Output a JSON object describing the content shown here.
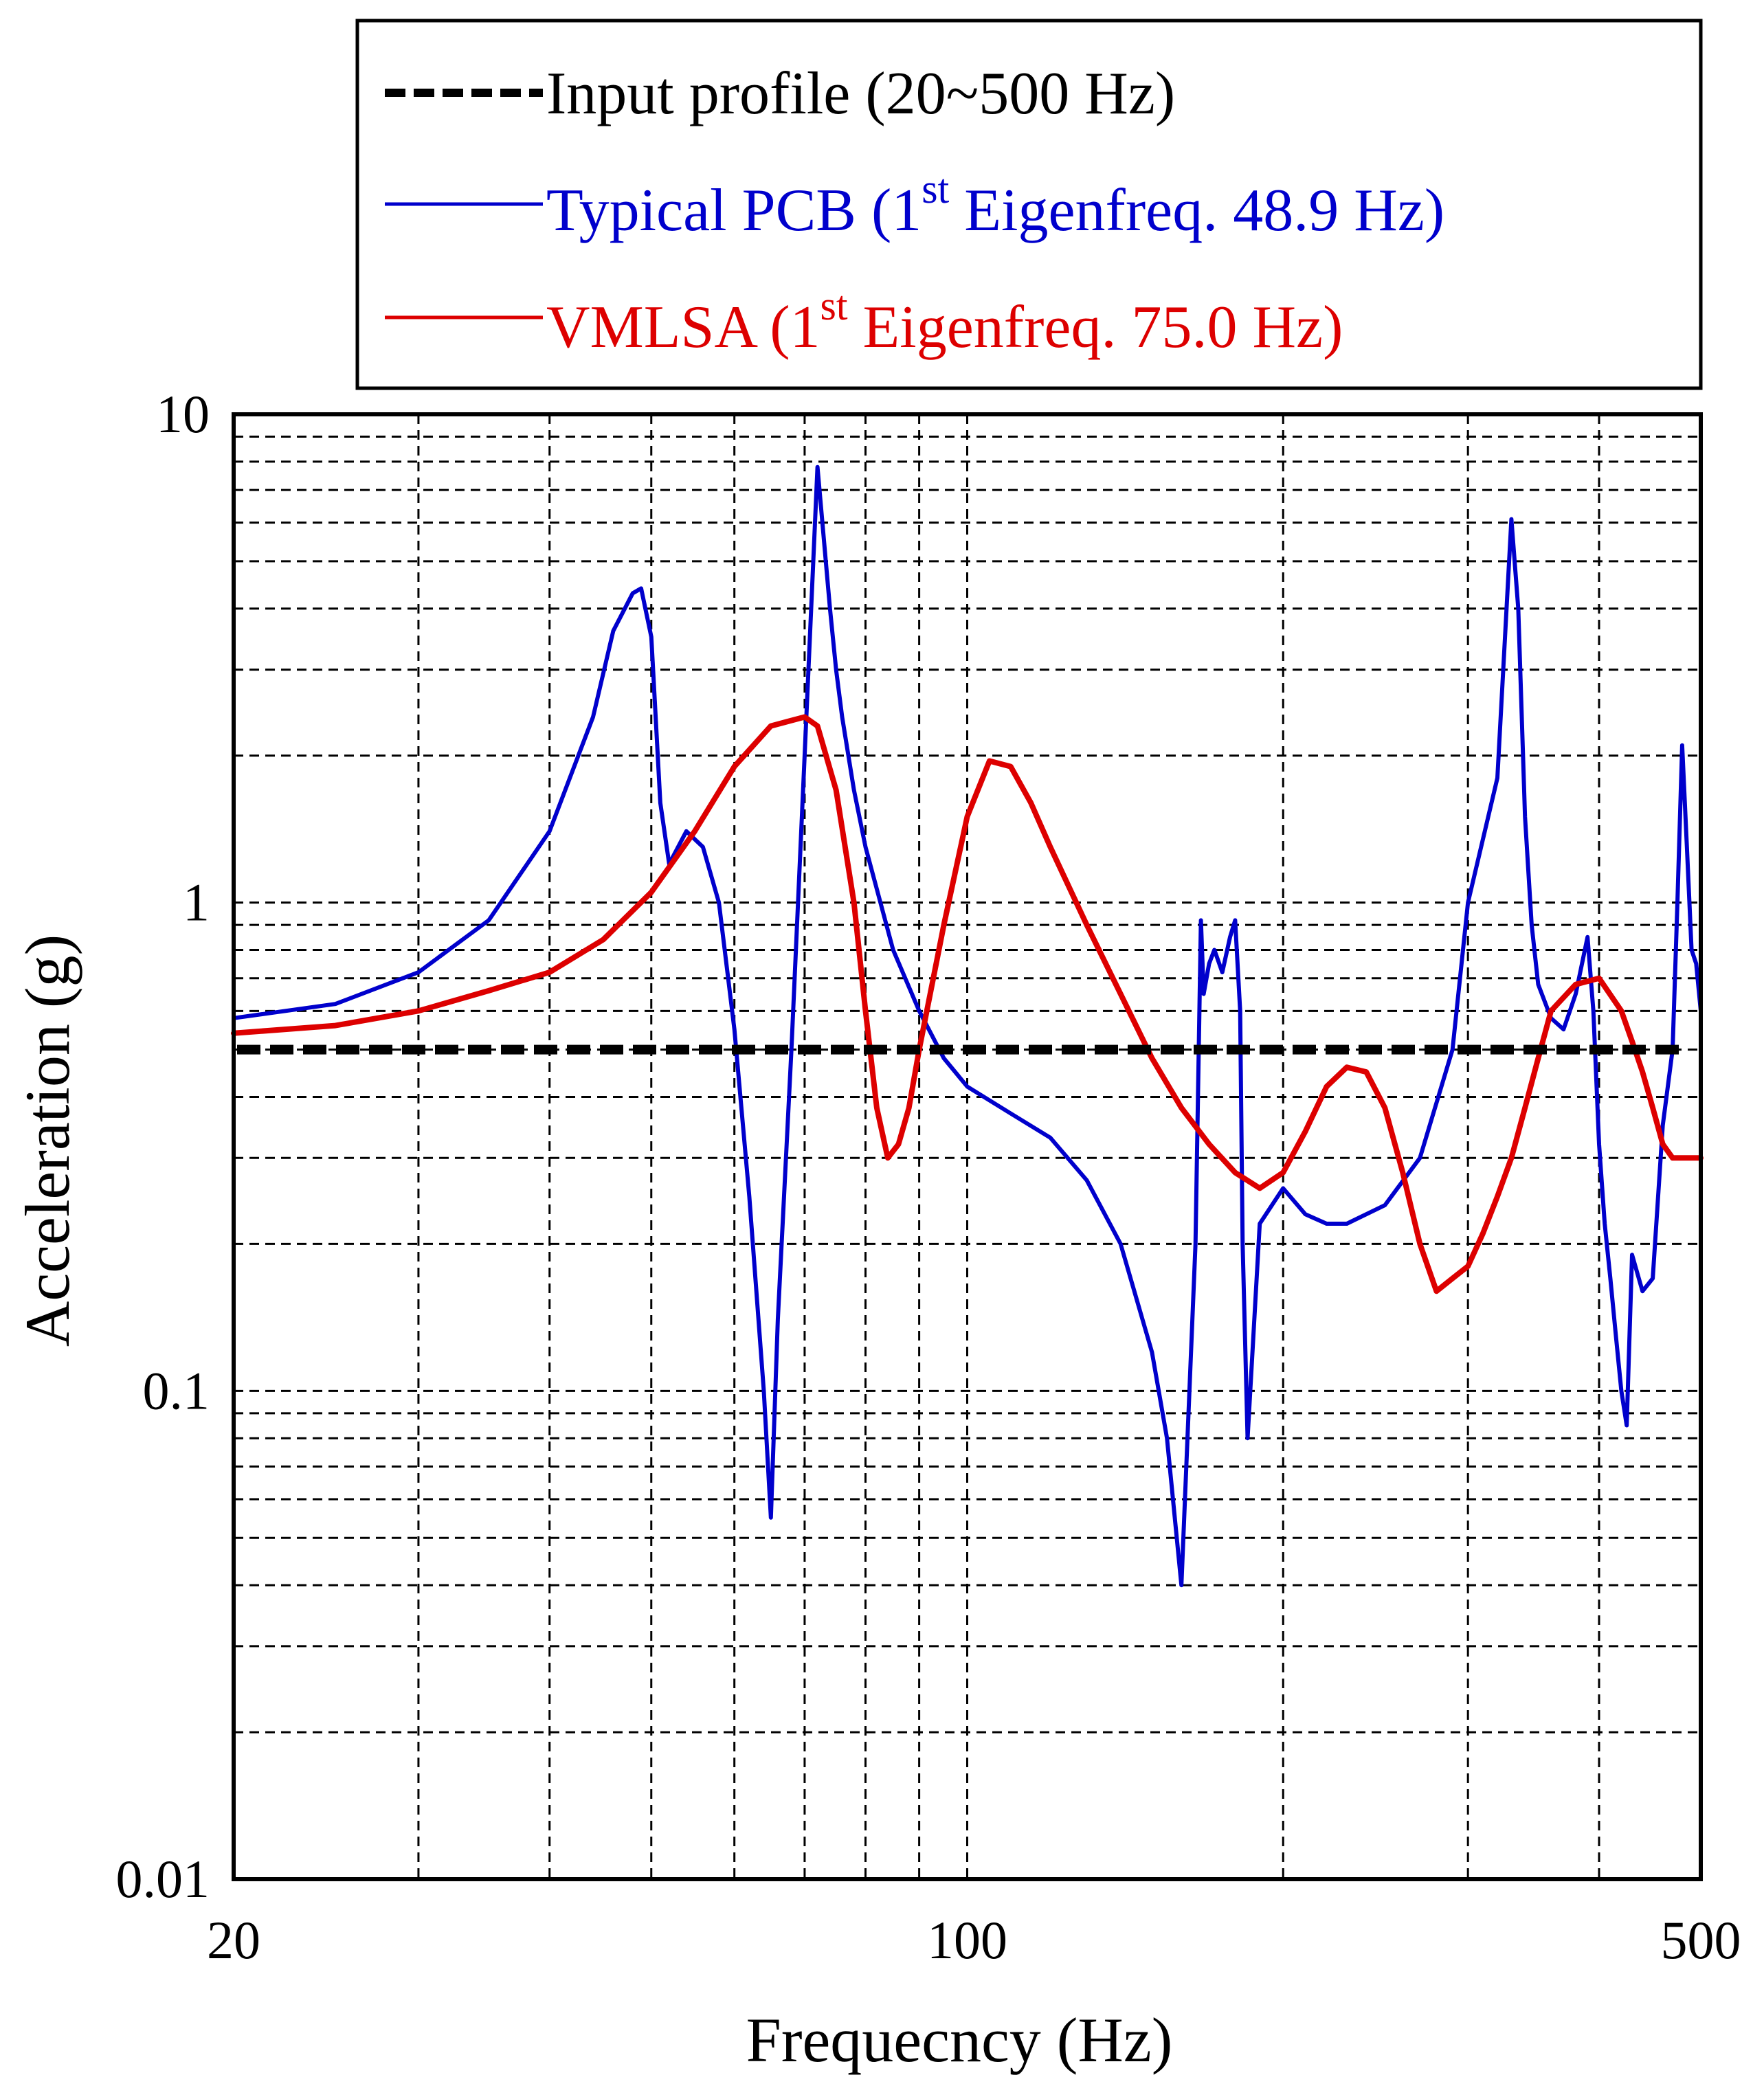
{
  "chart_data": {
    "type": "line",
    "title": "",
    "xlabel": "Frequecncy (Hz)",
    "ylabel": "Acceleration (g)",
    "x_scale": "log",
    "y_scale": "log",
    "xlim": [
      20,
      500
    ],
    "ylim": [
      0.01,
      10
    ],
    "grid": true,
    "x_ticks": [
      20,
      100,
      500
    ],
    "x_tick_labels": [
      "20",
      "100",
      "500"
    ],
    "y_ticks": [
      0.01,
      0.1,
      1,
      10
    ],
    "y_tick_labels": [
      "0.01",
      "0.1",
      "1",
      "10"
    ],
    "legend_position": "top",
    "legend": [
      {
        "text": "Input profile (20~500 Hz)",
        "color": "#000000",
        "style": "dashed"
      },
      {
        "text_before": "Typical PCB (1",
        "sup": "st",
        "text_after": " Eigenfreq. 48.9 Hz)",
        "color": "#0000cc",
        "style": "solid"
      },
      {
        "text_before": "VMLSA (1",
        "sup": "st",
        "text_after": " Eigenfreq. 75.0 Hz)",
        "color": "#dd0000",
        "style": "solid"
      }
    ],
    "series": [
      {
        "name": "Input profile (20~500 Hz)",
        "color": "#000000",
        "style": "dashed",
        "x": [
          20,
          500
        ],
        "y": [
          0.5,
          0.5
        ]
      },
      {
        "name": "Typical PCB",
        "color": "#0000cc",
        "style": "solid",
        "x": [
          20,
          25,
          30,
          35,
          40,
          44,
          46,
          48,
          48.9,
          50,
          51,
          52,
          54,
          56,
          58,
          60,
          62,
          64,
          65,
          66,
          68,
          70,
          72,
          74,
          75,
          76,
          78,
          80,
          85,
          90,
          95,
          100,
          110,
          120,
          130,
          140,
          150,
          155,
          160,
          165,
          167,
          168,
          170,
          172,
          175,
          178,
          180,
          182,
          183,
          185,
          190,
          200,
          210,
          220,
          230,
          250,
          270,
          290,
          300,
          320,
          330,
          335,
          340,
          345,
          350,
          360,
          370,
          380,
          390,
          395,
          400,
          405,
          410,
          415,
          420,
          425,
          430,
          440,
          450,
          460,
          470,
          475,
          480,
          485,
          490,
          495,
          500
        ],
        "y": [
          0.58,
          0.62,
          0.72,
          0.92,
          1.4,
          2.4,
          3.6,
          4.3,
          4.4,
          3.5,
          1.6,
          1.2,
          1.4,
          1.3,
          1.0,
          0.55,
          0.25,
          0.1,
          0.055,
          0.14,
          0.5,
          2.0,
          7.8,
          4.0,
          3.0,
          2.4,
          1.7,
          1.3,
          0.8,
          0.6,
          0.48,
          0.42,
          0.37,
          0.33,
          0.27,
          0.2,
          0.12,
          0.08,
          0.04,
          0.2,
          0.92,
          0.65,
          0.75,
          0.8,
          0.72,
          0.85,
          0.92,
          0.6,
          0.2,
          0.08,
          0.22,
          0.26,
          0.23,
          0.22,
          0.22,
          0.24,
          0.3,
          0.5,
          1.0,
          1.8,
          6.1,
          4.0,
          1.5,
          0.9,
          0.68,
          0.58,
          0.55,
          0.65,
          0.85,
          0.6,
          0.32,
          0.22,
          0.17,
          0.13,
          0.1,
          0.085,
          0.19,
          0.16,
          0.17,
          0.35,
          0.5,
          1.0,
          2.1,
          1.3,
          0.8,
          0.75,
          0.6
        ]
      },
      {
        "name": "VMLSA",
        "color": "#dd0000",
        "style": "solid",
        "x": [
          20,
          25,
          30,
          35,
          40,
          45,
          50,
          55,
          60,
          65,
          70,
          72,
          75,
          78,
          80,
          82,
          84,
          86,
          88,
          90,
          95,
          100,
          105,
          110,
          115,
          120,
          130,
          140,
          150,
          160,
          170,
          180,
          190,
          200,
          210,
          220,
          230,
          240,
          250,
          260,
          270,
          280,
          290,
          300,
          310,
          320,
          330,
          340,
          350,
          360,
          380,
          400,
          420,
          430,
          440,
          450,
          460,
          470,
          480,
          490,
          500
        ],
        "y": [
          0.54,
          0.56,
          0.6,
          0.66,
          0.72,
          0.84,
          1.05,
          1.4,
          1.9,
          2.3,
          2.4,
          2.3,
          1.7,
          1.0,
          0.6,
          0.38,
          0.3,
          0.32,
          0.38,
          0.5,
          0.9,
          1.5,
          1.95,
          1.9,
          1.6,
          1.3,
          0.9,
          0.65,
          0.48,
          0.38,
          0.32,
          0.28,
          0.26,
          0.28,
          0.34,
          0.42,
          0.46,
          0.45,
          0.38,
          0.28,
          0.2,
          0.16,
          0.17,
          0.18,
          0.21,
          0.25,
          0.3,
          0.38,
          0.48,
          0.6,
          0.68,
          0.7,
          0.6,
          0.52,
          0.45,
          0.38,
          0.32,
          0.3,
          0.3,
          0.3,
          0.3
        ]
      }
    ]
  }
}
